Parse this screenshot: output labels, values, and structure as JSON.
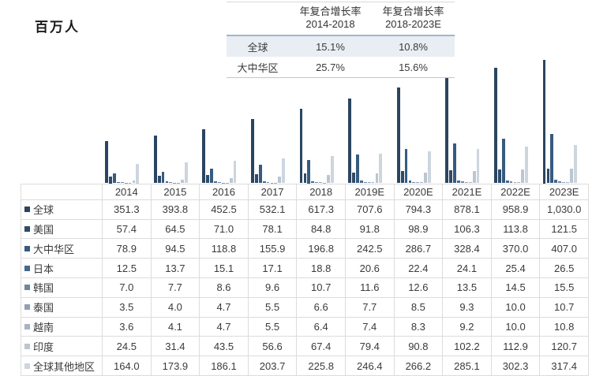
{
  "title": "百万人",
  "cagr_table": {
    "headers": [
      "年复合增长率\n2014-2018",
      "年复合增长率\n2018-2023E"
    ],
    "rows": [
      {
        "label": "全球",
        "values": [
          "15.1%",
          "10.8%"
        ]
      },
      {
        "label": "大中华区",
        "values": [
          "25.7%",
          "15.6%"
        ]
      }
    ]
  },
  "chart_data": {
    "type": "bar",
    "unit_label": "百万人",
    "categories": [
      "2014",
      "2015",
      "2016",
      "2017",
      "2018",
      "2019E",
      "2020E",
      "2021E",
      "2022E",
      "2023E"
    ],
    "ylim": [
      0,
      1030
    ],
    "grid": false,
    "legend_position": "table-rows",
    "series": [
      {
        "name": "全球",
        "color": "#2a455f",
        "values": [
          351.3,
          393.8,
          452.5,
          532.1,
          617.3,
          707.6,
          794.3,
          878.1,
          958.9,
          1030.0
        ]
      },
      {
        "name": "美国",
        "color": "#2e4b69",
        "values": [
          57.4,
          64.5,
          71.0,
          78.1,
          84.8,
          91.8,
          98.9,
          106.3,
          113.8,
          121.5
        ]
      },
      {
        "name": "大中华区",
        "color": "#365b80",
        "values": [
          78.9,
          94.5,
          118.8,
          155.9,
          196.8,
          242.5,
          286.7,
          328.4,
          370.0,
          407.0
        ]
      },
      {
        "name": "日本",
        "color": "#47688c",
        "values": [
          12.5,
          13.7,
          15.1,
          17.1,
          18.8,
          20.6,
          22.4,
          24.1,
          25.4,
          26.5
        ]
      },
      {
        "name": "韩国",
        "color": "#6d86a3",
        "values": [
          7.0,
          7.7,
          8.6,
          9.6,
          10.7,
          11.6,
          12.6,
          13.5,
          14.5,
          15.5
        ]
      },
      {
        "name": "泰国",
        "color": "#91a1b5",
        "values": [
          3.5,
          4.0,
          4.7,
          5.5,
          6.6,
          7.7,
          8.5,
          9.3,
          10.0,
          10.7
        ]
      },
      {
        "name": "越南",
        "color": "#a6b3c4",
        "values": [
          3.6,
          4.1,
          4.7,
          5.5,
          6.4,
          7.4,
          8.3,
          9.2,
          10.0,
          10.8
        ]
      },
      {
        "name": "印度",
        "color": "#bcc6d2",
        "values": [
          24.5,
          31.4,
          43.5,
          56.6,
          67.4,
          79.4,
          90.8,
          102.2,
          112.9,
          120.7
        ]
      },
      {
        "name": "全球其他地区",
        "color": "#cdd5de",
        "values": [
          164.0,
          173.9,
          186.1,
          203.7,
          225.8,
          246.4,
          266.2,
          285.1,
          302.3,
          317.4
        ]
      }
    ]
  },
  "table": {
    "corner": "",
    "columns": [
      "2014",
      "2015",
      "2016",
      "2017",
      "2018",
      "2019E",
      "2020E",
      "2021E",
      "2022E",
      "2023E"
    ],
    "rows": [
      {
        "label": "全球",
        "cells": [
          "351.3",
          "393.8",
          "452.5",
          "532.1",
          "617.3",
          "707.6",
          "794.3",
          "878.1",
          "958.9",
          "1,030.0"
        ]
      },
      {
        "label": "美国",
        "cells": [
          "57.4",
          "64.5",
          "71.0",
          "78.1",
          "84.8",
          "91.8",
          "98.9",
          "106.3",
          "113.8",
          "121.5"
        ]
      },
      {
        "label": "大中华区",
        "cells": [
          "78.9",
          "94.5",
          "118.8",
          "155.9",
          "196.8",
          "242.5",
          "286.7",
          "328.4",
          "370.0",
          "407.0"
        ]
      },
      {
        "label": "日本",
        "cells": [
          "12.5",
          "13.7",
          "15.1",
          "17.1",
          "18.8",
          "20.6",
          "22.4",
          "24.1",
          "25.4",
          "26.5"
        ]
      },
      {
        "label": "韩国",
        "cells": [
          "7.0",
          "7.7",
          "8.6",
          "9.6",
          "10.7",
          "11.6",
          "12.6",
          "13.5",
          "14.5",
          "15.5"
        ]
      },
      {
        "label": "泰国",
        "cells": [
          "3.5",
          "4.0",
          "4.7",
          "5.5",
          "6.6",
          "7.7",
          "8.5",
          "9.3",
          "10.0",
          "10.7"
        ]
      },
      {
        "label": "越南",
        "cells": [
          "3.6",
          "4.1",
          "4.7",
          "5.5",
          "6.4",
          "7.4",
          "8.3",
          "9.2",
          "10.0",
          "10.8"
        ]
      },
      {
        "label": "印度",
        "cells": [
          "24.5",
          "31.4",
          "43.5",
          "56.6",
          "67.4",
          "79.4",
          "90.8",
          "102.2",
          "112.9",
          "120.7"
        ]
      },
      {
        "label": "全球其他地区",
        "cells": [
          "164.0",
          "173.9",
          "186.1",
          "203.7",
          "225.8",
          "246.4",
          "266.2",
          "285.1",
          "302.3",
          "317.4"
        ]
      }
    ]
  }
}
